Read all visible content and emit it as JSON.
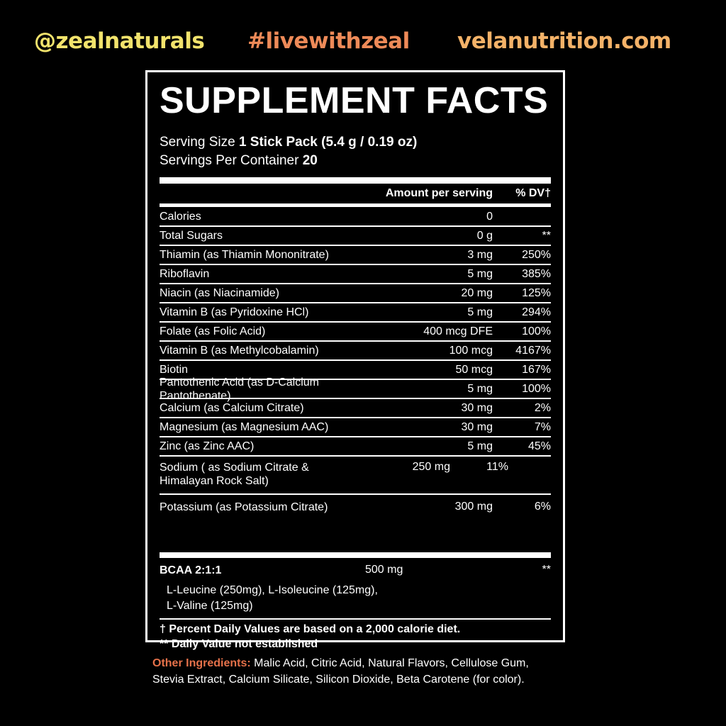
{
  "banner": {
    "handle": "@zealnaturals",
    "hashtag": "#livewithzeal",
    "website": "velanutrition.com",
    "colors": {
      "handle": "#f2e36c",
      "hashtag": "#ee8a58",
      "website": "#f4b268"
    }
  },
  "label": {
    "title": "SUPPLEMENT FACTS",
    "serving_size_label": "Serving Size",
    "serving_size": "1 Stick Pack (5.4 g / 0.19 oz)",
    "servings_label": "Servings Per Container",
    "servings": "20",
    "col_amount": "Amount per serving",
    "col_dv": "% DV†",
    "rows": [
      {
        "name": "Calories",
        "amount": "0",
        "dv": ""
      },
      {
        "name": "Total Sugars",
        "amount": "0 g",
        "dv": "**"
      },
      {
        "name": "Thiamin (as Thiamin Mononitrate)",
        "amount": "3 mg",
        "dv": "250%"
      },
      {
        "name": "Riboflavin",
        "amount": "5 mg",
        "dv": "385%"
      },
      {
        "name": "Niacin (as Niacinamide)",
        "amount": "20 mg",
        "dv": "125%"
      },
      {
        "name": "Vitamin B (as Pyridoxine HCl)",
        "amount": "5 mg",
        "dv": "294%"
      },
      {
        "name": "Folate (as Folic Acid)",
        "amount": "400 mcg DFE",
        "dv": "100%"
      },
      {
        "name": "Vitamin B (as Methylcobalamin)",
        "amount": "100 mcg",
        "dv": "4167%"
      },
      {
        "name": "Biotin",
        "amount": "50 mcg",
        "dv": "167%"
      },
      {
        "name": "Pantothenic Acid (as D-Calcium Pantothenate)",
        "amount": "5 mg",
        "dv": "100%"
      },
      {
        "name": "Calcium (as Calcium Citrate)",
        "amount": "30 mg",
        "dv": "2%"
      },
      {
        "name": "Magnesium (as Magnesium AAC)",
        "amount": "30 mg",
        "dv": "7%"
      },
      {
        "name": "Zinc (as Zinc AAC)",
        "amount": "5 mg",
        "dv": "45%"
      },
      {
        "name": "Sodium ( as Sodium Citrate & Himalayan Rock Salt)",
        "amount": "250 mg",
        "dv": "11%"
      },
      {
        "name": "Potassium (as Potassium Citrate)",
        "amount": "300 mg",
        "dv": "6%"
      }
    ],
    "bcaa": {
      "name": "BCAA 2:1:1",
      "amount": "500 mg",
      "dv": "**",
      "line1": "L-Leucine (250mg), L-Isoleucine (125mg),",
      "line2": "L-Valine (125mg)"
    },
    "footnote1": "† Percent Daily Values are based on a 2,000 calorie diet.",
    "footnote2": "** Daily Value not established"
  },
  "other": {
    "label": "Other Ingredients:",
    "text": " Malic Acid, Citric Acid, Natural Flavors, Cellulose Gum, Stevia Extract, Calcium Silicate, Silicon Dioxide, Beta Carotene (for color).",
    "label_color": "#e5714a"
  }
}
